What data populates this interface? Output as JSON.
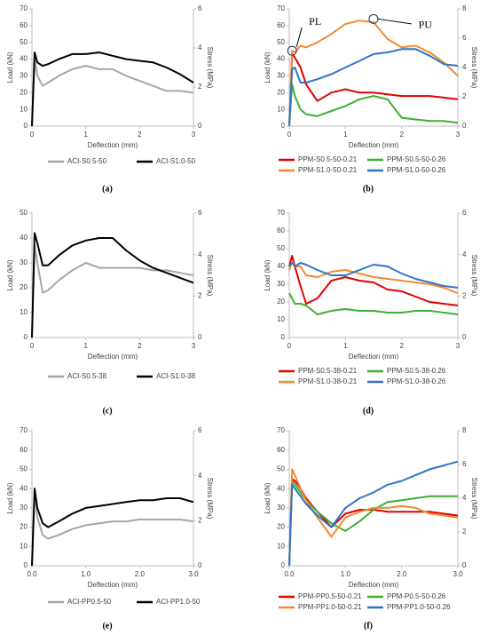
{
  "chart_data": [
    {
      "type": "line",
      "caption": "(a)",
      "x_label": "Deflection (mm)",
      "y_label": "Load (kN)",
      "y2_label": "Stress (MPa)",
      "x": [
        0,
        0.05,
        0.1,
        0.2,
        0.3,
        0.5,
        0.75,
        1.0,
        1.25,
        1.5,
        1.75,
        2.0,
        2.25,
        2.5,
        2.75,
        3.0
      ],
      "xlim": [
        0,
        3
      ],
      "xticks": [
        0,
        1,
        2,
        3
      ],
      "ylim": [
        0,
        70
      ],
      "yticks": [
        0,
        10,
        20,
        30,
        40,
        50,
        60,
        70
      ],
      "y2lim": [
        0,
        6
      ],
      "y2ticks": [
        0,
        2,
        4,
        6
      ],
      "series": [
        {
          "name": "ACI-S0.5-50",
          "color": "#a6a6a6",
          "values": [
            0,
            40,
            30,
            24,
            26,
            30,
            34,
            36,
            34,
            34,
            30,
            27,
            24,
            21,
            21,
            20
          ]
        },
        {
          "name": "ACI-S1.0-50",
          "color": "#000000",
          "values": [
            0,
            44,
            38,
            36,
            37,
            40,
            43,
            43,
            44,
            42,
            40,
            39,
            38,
            35,
            31,
            26
          ]
        }
      ]
    },
    {
      "type": "line",
      "caption": "(b)",
      "x_label": "Deflection (mm)",
      "y_label": "Load (kN)",
      "y2_label": "Stress (MPa)",
      "annotations": [
        "PL",
        "PU"
      ],
      "x": [
        0,
        0.05,
        0.1,
        0.2,
        0.3,
        0.5,
        0.75,
        1.0,
        1.25,
        1.5,
        1.75,
        2.0,
        2.25,
        2.5,
        2.75,
        3.0
      ],
      "xlim": [
        0,
        3
      ],
      "xticks": [
        0,
        1,
        2,
        3
      ],
      "ylim": [
        0,
        70
      ],
      "yticks": [
        0,
        10,
        20,
        30,
        40,
        50,
        60,
        70
      ],
      "y2lim": [
        0,
        8
      ],
      "y2ticks": [
        0,
        2,
        4,
        6,
        8
      ],
      "series": [
        {
          "name": "PPM-S0.5-50-0.21",
          "color": "#e00000",
          "values": [
            0,
            43,
            41,
            35,
            25,
            15,
            20,
            22,
            20,
            20,
            19,
            18,
            18,
            18,
            17,
            16
          ]
        },
        {
          "name": "PPM-S0.5-50-0.26",
          "color": "#3cb034",
          "values": [
            0,
            25,
            18,
            10,
            7,
            6,
            9,
            12,
            16,
            18,
            16,
            5,
            4,
            3,
            3,
            2
          ]
        },
        {
          "name": "PPM-S1.0-50-0.21",
          "color": "#f28a30",
          "values": [
            0,
            45,
            44,
            48,
            47,
            50,
            55,
            61,
            63,
            62,
            52,
            47,
            48,
            44,
            38,
            30
          ]
        },
        {
          "name": "PPM-S1.0-50-0.26",
          "color": "#2e75c8",
          "values": [
            0,
            34,
            35,
            26,
            26,
            28,
            31,
            35,
            39,
            43,
            44,
            46,
            46,
            42,
            37,
            36
          ]
        }
      ]
    },
    {
      "type": "line",
      "caption": "(c)",
      "x_label": "Deflection (mm)",
      "y_label": "Load (kN)",
      "y2_label": "Stress (MPa)",
      "x": [
        0,
        0.05,
        0.1,
        0.2,
        0.3,
        0.5,
        0.75,
        1.0,
        1.25,
        1.5,
        1.75,
        2.0,
        2.25,
        2.5,
        2.75,
        3.0
      ],
      "xlim": [
        0,
        3
      ],
      "xticks": [
        0,
        1,
        2,
        3
      ],
      "ylim": [
        0,
        50
      ],
      "yticks": [
        0,
        10,
        20,
        30,
        40,
        50
      ],
      "y2lim": [
        0,
        6
      ],
      "y2ticks": [
        0,
        2,
        4,
        6
      ],
      "series": [
        {
          "name": "ACI-S0.5-38",
          "color": "#a6a6a6",
          "values": [
            0,
            37,
            30,
            18,
            19,
            23,
            27,
            30,
            28,
            28,
            28,
            28,
            27,
            27,
            26,
            25
          ]
        },
        {
          "name": "ACI-S1.0-38",
          "color": "#000000",
          "values": [
            0,
            42,
            38,
            29,
            29,
            33,
            37,
            39,
            40,
            40,
            35,
            31,
            28,
            26,
            24,
            22
          ]
        }
      ]
    },
    {
      "type": "line",
      "caption": "(d)",
      "x_label": "Deflection (mm)",
      "y_label": "Load (kN)",
      "y2_label": "Stress (MPa)",
      "x": [
        0,
        0.05,
        0.1,
        0.2,
        0.3,
        0.5,
        0.75,
        1.0,
        1.25,
        1.5,
        1.75,
        2.0,
        2.25,
        2.5,
        2.75,
        3.0
      ],
      "xlim": [
        0,
        3
      ],
      "xticks": [
        0,
        1,
        2,
        3
      ],
      "ylim": [
        0,
        70
      ],
      "yticks": [
        0,
        10,
        20,
        30,
        40,
        50,
        60,
        70
      ],
      "y2lim": [
        0,
        6
      ],
      "y2ticks": [
        0,
        2,
        4,
        6
      ],
      "series": [
        {
          "name": "PPM-S0.5-38-0.21",
          "color": "#e00000",
          "values": [
            40,
            46,
            40,
            29,
            19,
            22,
            32,
            34,
            32,
            31,
            27,
            26,
            23,
            20,
            19,
            18
          ]
        },
        {
          "name": "PPM-S0.5-38-0.26",
          "color": "#3cb034",
          "values": [
            25,
            22,
            19,
            19,
            18,
            13,
            15,
            16,
            15,
            15,
            14,
            14,
            15,
            15,
            14,
            13
          ]
        },
        {
          "name": "PPM-S1.0-38-0.21",
          "color": "#f28a30",
          "values": [
            38,
            43,
            40,
            40,
            35,
            34,
            37,
            38,
            36,
            34,
            33,
            32,
            31,
            30,
            28,
            25
          ]
        },
        {
          "name": "PPM-S1.0-38-0.26",
          "color": "#2e75c8",
          "values": [
            40,
            42,
            40,
            42,
            41,
            38,
            35,
            35,
            38,
            41,
            40,
            36,
            33,
            31,
            29,
            28
          ]
        }
      ]
    },
    {
      "type": "line",
      "caption": "(e)",
      "x_label": "Deflection (mm)",
      "y_label": "Load (kN)",
      "y2_label": "Stress (MPa)",
      "x": [
        0,
        0.05,
        0.1,
        0.2,
        0.3,
        0.5,
        0.75,
        1.0,
        1.25,
        1.5,
        1.75,
        2.0,
        2.25,
        2.5,
        2.75,
        3.0
      ],
      "xlim": [
        0,
        3
      ],
      "xticks": [
        {
          "value": 0,
          "label": "0.0"
        },
        {
          "value": 1,
          "label": "1.0"
        },
        {
          "value": 2,
          "label": "2.0"
        },
        {
          "value": 3,
          "label": "3.0"
        }
      ],
      "ylim": [
        0,
        70
      ],
      "yticks": [
        0,
        10,
        20,
        30,
        40,
        50,
        60,
        70
      ],
      "y2lim": [
        0,
        6
      ],
      "y2ticks": [
        0,
        2,
        4,
        6
      ],
      "series": [
        {
          "name": "ACI-PP0.5-50",
          "color": "#a6a6a6",
          "values": [
            0,
            38,
            25,
            16,
            14,
            16,
            19,
            21,
            22,
            23,
            23,
            24,
            24,
            24,
            24,
            23
          ]
        },
        {
          "name": "ACI-PP1.0-50",
          "color": "#000000",
          "values": [
            0,
            40,
            30,
            22,
            20,
            23,
            27,
            30,
            31,
            32,
            33,
            34,
            34,
            35,
            35,
            33
          ]
        }
      ]
    },
    {
      "type": "line",
      "caption": "(f)",
      "x_label": "Deflection (mm)",
      "y_label": "Load (kN)",
      "y2_label": "Stress (MPa)",
      "x": [
        0,
        0.05,
        0.1,
        0.2,
        0.3,
        0.5,
        0.75,
        1.0,
        1.25,
        1.5,
        1.75,
        2.0,
        2.25,
        2.5,
        2.75,
        3.0
      ],
      "xlim": [
        0,
        3
      ],
      "xticks": [
        {
          "value": 0,
          "label": "0.0"
        },
        {
          "value": 1,
          "label": "1.0"
        },
        {
          "value": 2,
          "label": "2.0"
        },
        {
          "value": 3,
          "label": "3.0"
        }
      ],
      "ylim": [
        0,
        70
      ],
      "yticks": [
        0,
        10,
        20,
        30,
        40,
        50,
        60,
        70
      ],
      "y2lim": [
        0,
        8
      ],
      "y2ticks": [
        0,
        2,
        4,
        6,
        8
      ],
      "series": [
        {
          "name": "PPM-PP0.5-50-0.21",
          "color": "#e00000",
          "values": [
            0,
            45,
            44,
            40,
            35,
            28,
            20,
            27,
            29,
            29,
            28,
            28,
            28,
            28,
            27,
            26
          ]
        },
        {
          "name": "PPM-P0.5-50-0.26",
          "color": "#3cb034",
          "values": [
            0,
            44,
            42,
            38,
            34,
            28,
            22,
            18,
            23,
            29,
            33,
            34,
            35,
            36,
            36,
            36
          ]
        },
        {
          "name": "PPM-PP1.0-50-0.21",
          "color": "#f28a30",
          "values": [
            0,
            50,
            47,
            40,
            34,
            25,
            15,
            25,
            28,
            30,
            30,
            31,
            30,
            27,
            26,
            25
          ]
        },
        {
          "name": "PPM-PP1.0-50-0.26",
          "color": "#2e75c8",
          "values": [
            0,
            42,
            40,
            36,
            32,
            26,
            20,
            30,
            35,
            38,
            42,
            44,
            47,
            50,
            52,
            54
          ]
        }
      ]
    }
  ]
}
